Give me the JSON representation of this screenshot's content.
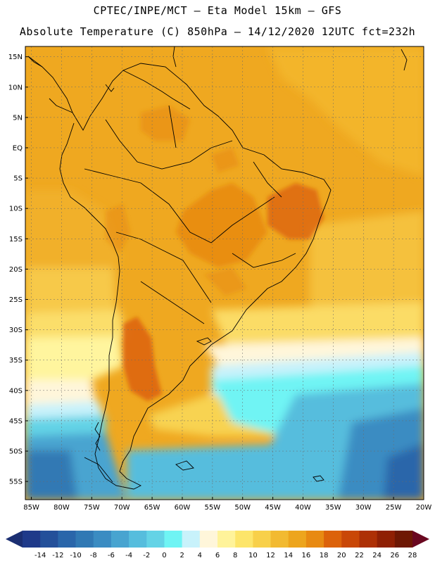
{
  "titles": {
    "line1": "CPTEC/INPE/MCT –  Eta Model 15km – GFS",
    "line2": "Absolute Temperature (C) 850hPa – 14/12/2020 12UTC fct=232h"
  },
  "axes": {
    "lat_labels": [
      "15N",
      "10N",
      "5N",
      "EQ",
      "5S",
      "10S",
      "15S",
      "20S",
      "25S",
      "30S",
      "35S",
      "40S",
      "45S",
      "50S",
      "55S"
    ],
    "lat_values": [
      15,
      10,
      5,
      0,
      -5,
      -10,
      -15,
      -20,
      -25,
      -30,
      -35,
      -40,
      -45,
      -50,
      -55
    ],
    "lon_labels": [
      "85W",
      "80W",
      "75W",
      "70W",
      "65W",
      "60W",
      "55W",
      "50W",
      "45W",
      "40W",
      "35W",
      "30W",
      "25W",
      "20W"
    ],
    "lon_values": [
      -85,
      -80,
      -75,
      -70,
      -65,
      -60,
      -55,
      -50,
      -45,
      -40,
      -35,
      -30,
      -25,
      -20
    ],
    "lat_range": [
      -58,
      16.7
    ],
    "lon_range": [
      -86,
      -20
    ]
  },
  "colorbar": {
    "labels": [
      "-14",
      "-12",
      "-10",
      "-8",
      "-6",
      "-4",
      "-2",
      "0",
      "2",
      "4",
      "6",
      "8",
      "10",
      "12",
      "14",
      "16",
      "18",
      "20",
      "22",
      "24",
      "26",
      "28"
    ],
    "colors": [
      "#1f3a8a",
      "#24509a",
      "#2a66aa",
      "#3179b4",
      "#3b8cc2",
      "#48a4d0",
      "#56bddd",
      "#64d3e6",
      "#6ff4f4",
      "#c8f2fb",
      "#fff6da",
      "#fff39a",
      "#fde56a",
      "#f8d04a",
      "#f2ba31",
      "#eda51d",
      "#e88a12",
      "#dc620a",
      "#c94707",
      "#ad3005",
      "#8f2004",
      "#6e1804"
    ],
    "low_arrow_color": "#1b2f72",
    "high_arrow_color": "#6a0820"
  }
}
